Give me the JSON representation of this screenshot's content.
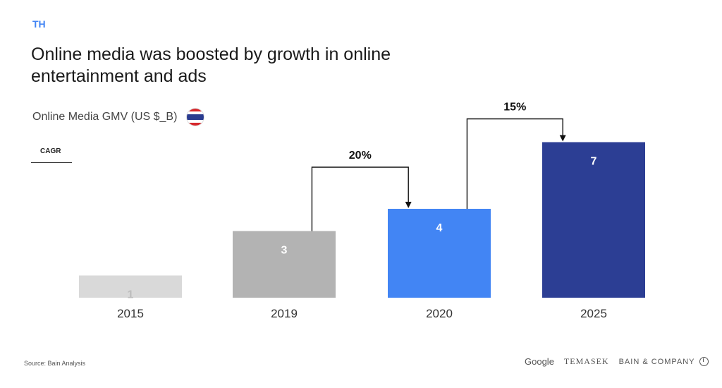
{
  "header": {
    "tag": "TH",
    "title": "Online media was boosted by growth in online entertainment and ads",
    "subtitle": "Online Media GMV (US $_B)",
    "flag_icon": "thailand-flag-icon"
  },
  "cagr_label": "CAGR",
  "chart_data": {
    "type": "bar",
    "categories": [
      "2015",
      "2019",
      "2020",
      "2025"
    ],
    "values": [
      1,
      3,
      4,
      7
    ],
    "value_labels": [
      "1",
      "3",
      "4",
      "7"
    ],
    "colors": [
      "#d9d9d9",
      "#b3b3b3",
      "#4285f4",
      "#2c3e94"
    ],
    "value_label_colors": [
      "#bdbdbd",
      "#ffffff",
      "#ffffff",
      "#ffffff"
    ],
    "title": "Online Media GMV (US $_B)",
    "xlabel": "",
    "ylabel": "",
    "grid": false,
    "annotations": [
      {
        "label": "20%",
        "from": "2019",
        "to": "2020"
      },
      {
        "label": "15%",
        "from": "2020",
        "to": "2025"
      }
    ]
  },
  "footer": {
    "source": "Source: Bain Analysis",
    "logos": [
      "Google",
      "TEMASEK",
      "BAIN & COMPANY"
    ]
  }
}
